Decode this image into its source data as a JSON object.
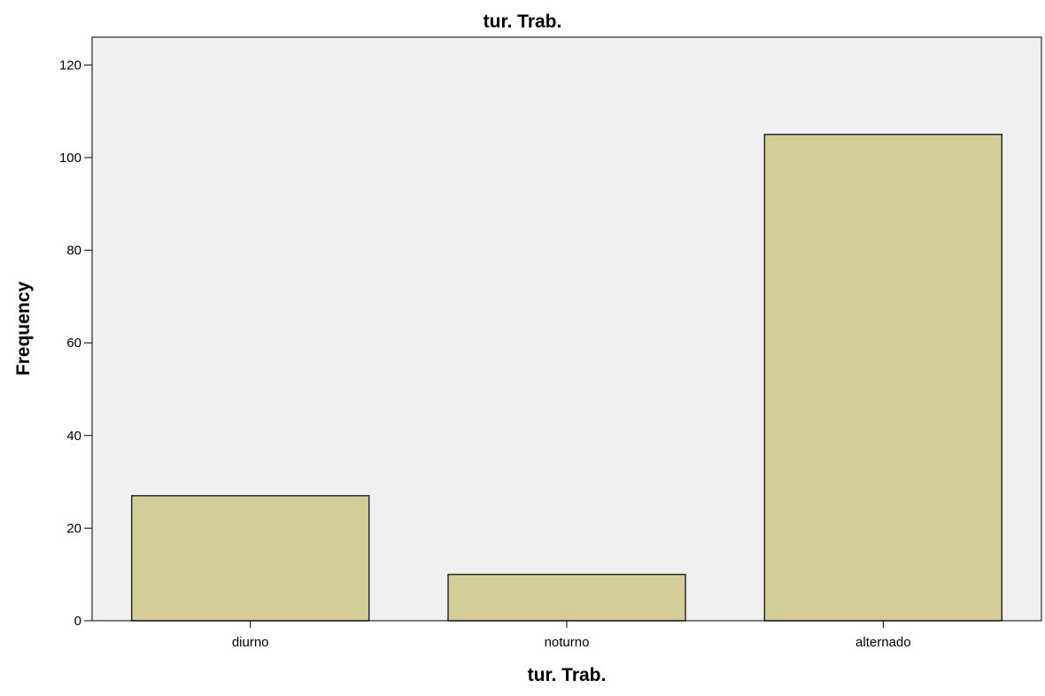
{
  "chart_data": {
    "type": "bar",
    "title": "tur. Trab.",
    "xlabel": "tur. Trab.",
    "ylabel": "Frequency",
    "categories": [
      "diurno",
      "noturno",
      "alternado"
    ],
    "values": [
      27,
      10,
      105
    ],
    "ylim": [
      0,
      126
    ],
    "yticks": [
      0,
      20,
      40,
      60,
      80,
      100,
      120
    ],
    "grid": false,
    "legend": "none",
    "colors": {
      "plot_background": "#f0f0f0",
      "bar_fill": "#d3ce97",
      "bar_stroke": "#2b2b2b",
      "axis": "#000000"
    }
  }
}
